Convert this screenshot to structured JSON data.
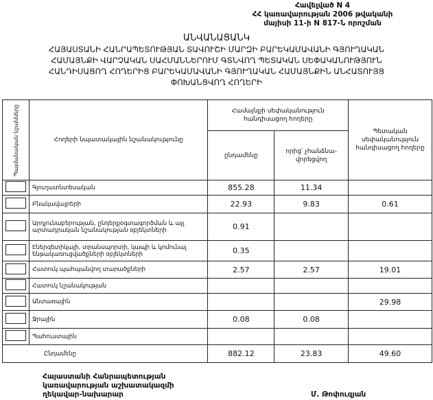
{
  "annex": [
    "Հավելված N 4",
    "ՀՀ կառավարության 2006 թվականի",
    "մայիսի 11-ի N 817-Ն որոշման"
  ],
  "title": [
    "ԱՆՎԱՆԱՑԱՆԿ",
    "ՀԱՅԱՍՏԱՆԻ ՀԱՆՐԱՊԵՏՈՒԹՅԱՆ ՏԱՎՈՒՇԻ ՄԱՐԶԻ ԲԱՐԵԿԱՄԱՎԱՆԻ ԳՅՈՒՂԱԿԱՆ",
    "ՀԱՄԱՅՆՔԻ ՎԱՐՉԱԿԱՆ ՍԱՀՄԱՆՆԵՐՈՒՄ ԳՏՆՎՈՂ ՊԵՏԱԿԱՆ ՍԵՓԱԿԱՆՈՒԹՅՈՒՆ",
    "ՀԱՆԴԻՍԱՑՈՂ ՀՈՂԵՐԻՑ ԲԱՐԵԿԱՄԱՎԱՆԻ ԳՅՈՒՂԱԿԱՆ ՀԱՄԱՅՆՔԻՆ ԱՆՀԱՏՈՒՅՑ",
    "ՓՈԽԱՆՑՎՈՂ ՀՈՂԵՐԻ"
  ],
  "table": {
    "headers": {
      "symbols": "Պայմանական նշանները",
      "purpose": "Հողերի նպատակային նշանակությունը",
      "community": "Համայնքի սեփականություն հանդիսացող հողերը",
      "total": "ընդամենը",
      "of_which": "որից՝ չհանձնա-վորեցվող",
      "state": "Պետական սեփականություն հանդիսացող հողերը"
    },
    "rows": [
      {
        "label": "Գյուղատնտեսական",
        "total": "855.28",
        "of_which": "11.34",
        "state": ""
      },
      {
        "label": "Բնակավայրերի",
        "total": "22.93",
        "of_which": "9.83",
        "state": "0.61"
      },
      {
        "label": "Արդյունաբերության, ընդերքօգտագործման և այլ արտադրական նշանակության օբյեկտների",
        "total": "0.91",
        "of_which": "",
        "state": ""
      },
      {
        "label": "Էներգետիկայի, տրանսպորտի, կապի և կոմունալ ենթակառուցվածքների օբյեկտների",
        "total": "0.35",
        "of_which": "",
        "state": ""
      },
      {
        "label": "Հատուկ պահպանվող տարածքների",
        "total": "2.57",
        "of_which": "2.57",
        "state": "19.01"
      },
      {
        "label": "Հատուկ նշանակության",
        "total": "",
        "of_which": "",
        "state": ""
      },
      {
        "label": "Անտառային",
        "total": "",
        "of_which": "",
        "state": "29.98"
      },
      {
        "label": "Ջրային",
        "total": "0.08",
        "of_which": "0.08",
        "state": ""
      },
      {
        "label": "Պահուստային",
        "total": "",
        "of_which": "",
        "state": ""
      }
    ],
    "totals": {
      "label": "Ընդամենը",
      "total": "882.12",
      "of_which": "23.83",
      "state": "49.60"
    }
  },
  "footer": {
    "position": [
      "Հայաստանի Հանրապետության",
      "կառավարության աշխատակազմի",
      "ղեկավար-նախարար"
    ],
    "signatory": "Մ. Թոփուզյան"
  }
}
